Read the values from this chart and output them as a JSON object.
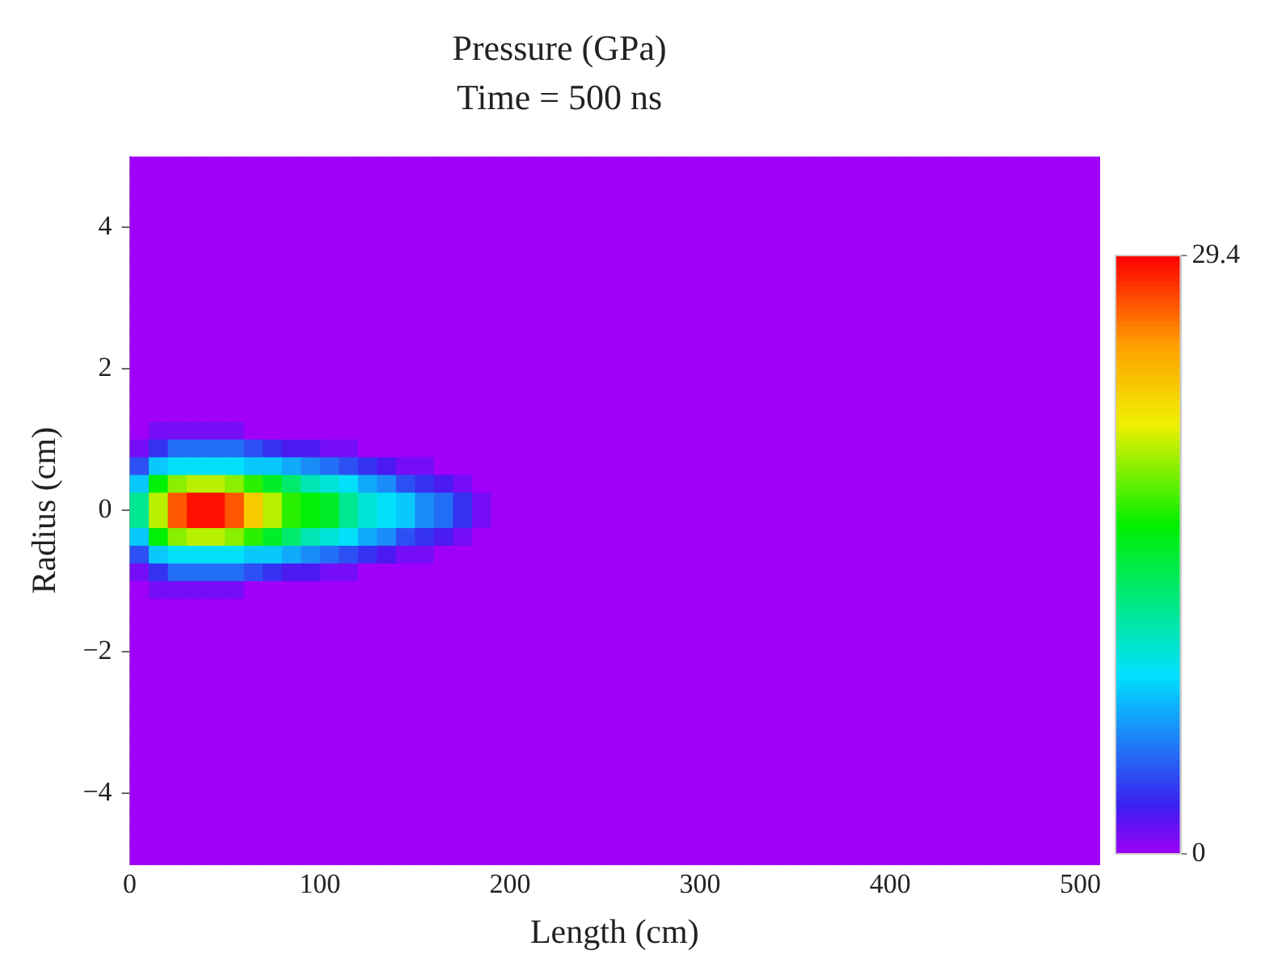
{
  "chart_data": {
    "type": "heatmap",
    "title": "Pressure (GPa)",
    "subtitle": "Time = 500 ns",
    "xlabel": "Length (cm)",
    "ylabel": "Radius (cm)",
    "xlim": [
      0,
      510
    ],
    "ylim": [
      -5,
      5
    ],
    "xticks": [
      0,
      100,
      200,
      300,
      400,
      500
    ],
    "yticks": [
      -4,
      -2,
      0,
      2,
      4
    ],
    "clim": [
      0,
      29.4
    ],
    "cticks": [
      0,
      29.4
    ],
    "cells": [
      [
        0,
        0,
        0,
        0,
        0,
        0,
        0,
        0,
        0,
        0,
        0,
        0,
        0,
        0,
        0,
        0,
        0,
        0,
        0,
        0,
        0,
        0,
        0,
        0,
        0,
        0,
        0,
        0,
        0,
        0,
        0,
        0,
        0,
        0,
        0,
        0,
        0,
        0,
        0,
        0,
        0,
        0,
        0,
        0,
        0,
        0,
        0,
        0,
        0,
        0,
        0
      ],
      [
        0,
        0,
        0,
        0,
        0,
        0,
        0,
        0,
        0,
        0,
        0,
        0,
        0,
        0,
        0,
        0,
        0,
        0,
        0,
        0,
        0,
        0,
        0,
        0,
        0,
        0,
        0,
        0,
        0,
        0,
        0,
        0,
        0,
        0,
        0,
        0,
        0,
        0,
        0,
        0,
        0,
        0,
        0,
        0,
        0,
        0,
        0,
        0,
        0,
        0,
        0
      ],
      [
        0,
        0,
        0,
        0,
        0,
        0,
        0,
        0,
        0,
        0,
        0,
        0,
        0,
        0,
        0,
        0,
        0,
        0,
        0,
        0,
        0,
        0,
        0,
        0,
        0,
        0,
        0,
        0,
        0,
        0,
        0,
        0,
        0,
        0,
        0,
        0,
        0,
        0,
        0,
        0,
        0,
        0,
        0,
        0,
        0,
        0,
        0,
        0,
        0,
        0,
        0
      ],
      [
        0,
        0,
        0,
        0,
        0,
        0,
        0,
        0,
        0,
        0,
        0,
        0,
        0,
        0,
        0,
        0,
        0,
        0,
        0,
        0,
        0,
        0,
        0,
        0,
        0,
        0,
        0,
        0,
        0,
        0,
        0,
        0,
        0,
        0,
        0,
        0,
        0,
        0,
        0,
        0,
        0,
        0,
        0,
        0,
        0,
        0,
        0,
        0,
        0,
        0,
        0
      ],
      [
        0,
        0,
        0,
        0,
        0,
        0,
        0,
        0,
        0,
        0,
        0,
        0,
        0,
        0,
        0,
        0,
        0,
        0,
        0,
        0,
        0,
        0,
        0,
        0,
        0,
        0,
        0,
        0,
        0,
        0,
        0,
        0,
        0,
        0,
        0,
        0,
        0,
        0,
        0,
        0,
        0,
        0,
        0,
        0,
        0,
        0,
        0,
        0,
        0,
        0,
        0
      ],
      [
        0,
        0,
        0,
        0,
        0,
        0,
        0,
        0,
        0,
        0,
        0,
        0,
        0,
        0,
        0,
        0,
        0,
        0,
        0,
        0,
        0,
        0,
        0,
        0,
        0,
        0,
        0,
        0,
        0,
        0,
        0,
        0,
        0,
        0,
        0,
        0,
        0,
        0,
        0,
        0,
        0,
        0,
        0,
        0,
        0,
        0,
        0,
        0,
        0,
        0,
        0
      ],
      [
        0,
        0,
        0,
        0,
        0,
        0,
        0,
        0,
        0,
        0,
        0,
        0,
        0,
        0,
        0,
        0,
        0,
        0,
        0,
        0,
        0,
        0,
        0,
        0,
        0,
        0,
        0,
        0,
        0,
        0,
        0,
        0,
        0,
        0,
        0,
        0,
        0,
        0,
        0,
        0,
        0,
        0,
        0,
        0,
        0,
        0,
        0,
        0,
        0,
        0,
        0
      ],
      [
        0,
        0,
        0,
        0,
        0,
        0,
        0,
        0,
        0,
        0,
        0,
        0,
        0,
        0,
        0,
        0,
        0,
        0,
        0,
        0,
        0,
        0,
        0,
        0,
        0,
        0,
        0,
        0,
        0,
        0,
        0,
        0,
        0,
        0,
        0,
        0,
        0,
        0,
        0,
        0,
        0,
        0,
        0,
        0,
        0,
        0,
        0,
        0,
        0,
        0,
        0
      ],
      [
        0,
        0,
        0,
        0,
        0,
        0,
        0,
        0,
        0,
        0,
        0,
        0,
        0,
        0,
        0,
        0,
        0,
        0,
        0,
        0,
        0,
        0,
        0,
        0,
        0,
        0,
        0,
        0,
        0,
        0,
        0,
        0,
        0,
        0,
        0,
        0,
        0,
        0,
        0,
        0,
        0,
        0,
        0,
        0,
        0,
        0,
        0,
        0,
        0,
        0,
        0
      ],
      [
        0,
        0,
        0,
        0,
        0,
        0,
        0,
        0,
        0,
        0,
        0,
        0,
        0,
        0,
        0,
        0,
        0,
        0,
        0,
        0,
        0,
        0,
        0,
        0,
        0,
        0,
        0,
        0,
        0,
        0,
        0,
        0,
        0,
        0,
        0,
        0,
        0,
        0,
        0,
        0,
        0,
        0,
        0,
        0,
        0,
        0,
        0,
        0,
        0,
        0,
        0
      ],
      [
        0,
        0,
        0,
        0,
        0,
        0,
        0,
        0,
        0,
        0,
        0,
        0,
        0,
        0,
        0,
        0,
        0,
        0,
        0,
        0,
        0,
        0,
        0,
        0,
        0,
        0,
        0,
        0,
        0,
        0,
        0,
        0,
        0,
        0,
        0,
        0,
        0,
        0,
        0,
        0,
        0,
        0,
        0,
        0,
        0,
        0,
        0,
        0,
        0,
        0,
        0
      ],
      [
        0,
        0,
        0,
        0,
        0,
        0,
        0,
        0,
        0,
        0,
        0,
        0,
        0,
        0,
        0,
        0,
        0,
        0,
        0,
        0,
        0,
        0,
        0,
        0,
        0,
        0,
        0,
        0,
        0,
        0,
        0,
        0,
        0,
        0,
        0,
        0,
        0,
        0,
        0,
        0,
        0,
        0,
        0,
        0,
        0,
        0,
        0,
        0,
        0,
        0,
        0
      ],
      [
        0,
        0,
        0,
        0,
        0,
        0,
        0,
        0,
        0,
        0,
        0,
        0,
        0,
        0,
        0,
        0,
        0,
        0,
        0,
        0,
        0,
        0,
        0,
        0,
        0,
        0,
        0,
        0,
        0,
        0,
        0,
        0,
        0,
        0,
        0,
        0,
        0,
        0,
        0,
        0,
        0,
        0,
        0,
        0,
        0,
        0,
        0,
        0,
        0,
        0,
        0
      ],
      [
        0,
        0,
        0,
        0,
        0,
        0,
        0,
        0,
        0,
        0,
        0,
        0,
        0,
        0,
        0,
        0,
        0,
        0,
        0,
        0,
        0,
        0,
        0,
        0,
        0,
        0,
        0,
        0,
        0,
        0,
        0,
        0,
        0,
        0,
        0,
        0,
        0,
        0,
        0,
        0,
        0,
        0,
        0,
        0,
        0,
        0,
        0,
        0,
        0,
        0,
        0
      ],
      [
        0,
        0,
        0,
        0,
        0,
        0,
        0,
        0,
        0,
        0,
        0,
        0,
        0,
        0,
        0,
        0,
        0,
        0,
        0,
        0,
        0,
        0,
        0,
        0,
        0,
        0,
        0,
        0,
        0,
        0,
        0,
        0,
        0,
        0,
        0,
        0,
        0,
        0,
        0,
        0,
        0,
        0,
        0,
        0,
        0,
        0,
        0,
        0,
        0,
        0,
        0
      ],
      [
        0,
        1,
        1,
        1,
        1,
        1,
        0,
        0,
        0,
        0,
        0,
        0,
        0,
        0,
        0,
        0,
        0,
        0,
        0,
        0,
        0,
        0,
        0,
        0,
        0,
        0,
        0,
        0,
        0,
        0,
        0,
        0,
        0,
        0,
        0,
        0,
        0,
        0,
        0,
        0,
        0,
        0,
        0,
        0,
        0,
        0,
        0,
        0,
        0,
        0,
        0
      ],
      [
        1,
        3,
        5,
        5,
        5,
        5,
        4,
        3,
        2,
        2,
        1,
        1,
        0,
        0,
        0,
        0,
        0,
        0,
        0,
        0,
        0,
        0,
        0,
        0,
        0,
        0,
        0,
        0,
        0,
        0,
        0,
        0,
        0,
        0,
        0,
        0,
        0,
        0,
        0,
        0,
        0,
        0,
        0,
        0,
        0,
        0,
        0,
        0,
        0,
        0,
        0
      ],
      [
        4,
        8,
        9,
        9,
        9,
        9,
        8,
        8,
        7,
        6,
        5,
        4,
        3,
        2,
        1,
        1,
        0,
        0,
        0,
        0,
        0,
        0,
        0,
        0,
        0,
        0,
        0,
        0,
        0,
        0,
        0,
        0,
        0,
        0,
        0,
        0,
        0,
        0,
        0,
        0,
        0,
        0,
        0,
        0,
        0,
        0,
        0,
        0,
        0,
        0,
        0
      ],
      [
        8,
        16,
        19,
        20,
        20,
        19,
        17,
        15,
        13,
        11,
        10,
        9,
        7,
        6,
        4,
        3,
        2,
        1,
        0,
        0,
        0,
        0,
        0,
        0,
        0,
        0,
        0,
        0,
        0,
        0,
        0,
        0,
        0,
        0,
        0,
        0,
        0,
        0,
        0,
        0,
        0,
        0,
        0,
        0,
        0,
        0,
        0,
        0,
        0,
        0,
        0
      ],
      [
        12,
        20,
        27,
        29,
        29,
        27,
        23,
        20,
        17,
        16,
        15,
        12,
        10,
        9,
        8,
        6,
        5,
        3,
        1,
        0,
        0,
        0,
        0,
        0,
        0,
        0,
        0,
        0,
        0,
        0,
        0,
        0,
        0,
        0,
        0,
        0,
        0,
        0,
        0,
        0,
        0,
        0,
        0,
        0,
        0,
        0,
        0,
        0,
        0,
        0,
        0
      ],
      [
        12,
        20,
        27,
        29,
        29,
        27,
        23,
        20,
        17,
        16,
        15,
        12,
        10,
        9,
        8,
        6,
        5,
        3,
        1,
        0,
        0,
        0,
        0,
        0,
        0,
        0,
        0,
        0,
        0,
        0,
        0,
        0,
        0,
        0,
        0,
        0,
        0,
        0,
        0,
        0,
        0,
        0,
        0,
        0,
        0,
        0,
        0,
        0,
        0,
        0,
        0
      ],
      [
        8,
        16,
        19,
        20,
        20,
        19,
        17,
        15,
        13,
        11,
        10,
        9,
        7,
        6,
        4,
        3,
        2,
        1,
        0,
        0,
        0,
        0,
        0,
        0,
        0,
        0,
        0,
        0,
        0,
        0,
        0,
        0,
        0,
        0,
        0,
        0,
        0,
        0,
        0,
        0,
        0,
        0,
        0,
        0,
        0,
        0,
        0,
        0,
        0,
        0,
        0
      ],
      [
        4,
        8,
        9,
        9,
        9,
        9,
        8,
        8,
        7,
        6,
        5,
        4,
        3,
        2,
        1,
        1,
        0,
        0,
        0,
        0,
        0,
        0,
        0,
        0,
        0,
        0,
        0,
        0,
        0,
        0,
        0,
        0,
        0,
        0,
        0,
        0,
        0,
        0,
        0,
        0,
        0,
        0,
        0,
        0,
        0,
        0,
        0,
        0,
        0,
        0,
        0
      ],
      [
        1,
        3,
        5,
        5,
        5,
        5,
        4,
        3,
        2,
        2,
        1,
        1,
        0,
        0,
        0,
        0,
        0,
        0,
        0,
        0,
        0,
        0,
        0,
        0,
        0,
        0,
        0,
        0,
        0,
        0,
        0,
        0,
        0,
        0,
        0,
        0,
        0,
        0,
        0,
        0,
        0,
        0,
        0,
        0,
        0,
        0,
        0,
        0,
        0,
        0,
        0
      ],
      [
        0,
        1,
        1,
        1,
        1,
        1,
        0,
        0,
        0,
        0,
        0,
        0,
        0,
        0,
        0,
        0,
        0,
        0,
        0,
        0,
        0,
        0,
        0,
        0,
        0,
        0,
        0,
        0,
        0,
        0,
        0,
        0,
        0,
        0,
        0,
        0,
        0,
        0,
        0,
        0,
        0,
        0,
        0,
        0,
        0,
        0,
        0,
        0,
        0,
        0,
        0
      ],
      [
        0,
        0,
        0,
        0,
        0,
        0,
        0,
        0,
        0,
        0,
        0,
        0,
        0,
        0,
        0,
        0,
        0,
        0,
        0,
        0,
        0,
        0,
        0,
        0,
        0,
        0,
        0,
        0,
        0,
        0,
        0,
        0,
        0,
        0,
        0,
        0,
        0,
        0,
        0,
        0,
        0,
        0,
        0,
        0,
        0,
        0,
        0,
        0,
        0,
        0,
        0
      ],
      [
        0,
        0,
        0,
        0,
        0,
        0,
        0,
        0,
        0,
        0,
        0,
        0,
        0,
        0,
        0,
        0,
        0,
        0,
        0,
        0,
        0,
        0,
        0,
        0,
        0,
        0,
        0,
        0,
        0,
        0,
        0,
        0,
        0,
        0,
        0,
        0,
        0,
        0,
        0,
        0,
        0,
        0,
        0,
        0,
        0,
        0,
        0,
        0,
        0,
        0,
        0
      ],
      [
        0,
        0,
        0,
        0,
        0,
        0,
        0,
        0,
        0,
        0,
        0,
        0,
        0,
        0,
        0,
        0,
        0,
        0,
        0,
        0,
        0,
        0,
        0,
        0,
        0,
        0,
        0,
        0,
        0,
        0,
        0,
        0,
        0,
        0,
        0,
        0,
        0,
        0,
        0,
        0,
        0,
        0,
        0,
        0,
        0,
        0,
        0,
        0,
        0,
        0,
        0
      ],
      [
        0,
        0,
        0,
        0,
        0,
        0,
        0,
        0,
        0,
        0,
        0,
        0,
        0,
        0,
        0,
        0,
        0,
        0,
        0,
        0,
        0,
        0,
        0,
        0,
        0,
        0,
        0,
        0,
        0,
        0,
        0,
        0,
        0,
        0,
        0,
        0,
        0,
        0,
        0,
        0,
        0,
        0,
        0,
        0,
        0,
        0,
        0,
        0,
        0,
        0,
        0
      ],
      [
        0,
        0,
        0,
        0,
        0,
        0,
        0,
        0,
        0,
        0,
        0,
        0,
        0,
        0,
        0,
        0,
        0,
        0,
        0,
        0,
        0,
        0,
        0,
        0,
        0,
        0,
        0,
        0,
        0,
        0,
        0,
        0,
        0,
        0,
        0,
        0,
        0,
        0,
        0,
        0,
        0,
        0,
        0,
        0,
        0,
        0,
        0,
        0,
        0,
        0,
        0
      ],
      [
        0,
        0,
        0,
        0,
        0,
        0,
        0,
        0,
        0,
        0,
        0,
        0,
        0,
        0,
        0,
        0,
        0,
        0,
        0,
        0,
        0,
        0,
        0,
        0,
        0,
        0,
        0,
        0,
        0,
        0,
        0,
        0,
        0,
        0,
        0,
        0,
        0,
        0,
        0,
        0,
        0,
        0,
        0,
        0,
        0,
        0,
        0,
        0,
        0,
        0,
        0
      ],
      [
        0,
        0,
        0,
        0,
        0,
        0,
        0,
        0,
        0,
        0,
        0,
        0,
        0,
        0,
        0,
        0,
        0,
        0,
        0,
        0,
        0,
        0,
        0,
        0,
        0,
        0,
        0,
        0,
        0,
        0,
        0,
        0,
        0,
        0,
        0,
        0,
        0,
        0,
        0,
        0,
        0,
        0,
        0,
        0,
        0,
        0,
        0,
        0,
        0,
        0,
        0
      ],
      [
        0,
        0,
        0,
        0,
        0,
        0,
        0,
        0,
        0,
        0,
        0,
        0,
        0,
        0,
        0,
        0,
        0,
        0,
        0,
        0,
        0,
        0,
        0,
        0,
        0,
        0,
        0,
        0,
        0,
        0,
        0,
        0,
        0,
        0,
        0,
        0,
        0,
        0,
        0,
        0,
        0,
        0,
        0,
        0,
        0,
        0,
        0,
        0,
        0,
        0,
        0
      ],
      [
        0,
        0,
        0,
        0,
        0,
        0,
        0,
        0,
        0,
        0,
        0,
        0,
        0,
        0,
        0,
        0,
        0,
        0,
        0,
        0,
        0,
        0,
        0,
        0,
        0,
        0,
        0,
        0,
        0,
        0,
        0,
        0,
        0,
        0,
        0,
        0,
        0,
        0,
        0,
        0,
        0,
        0,
        0,
        0,
        0,
        0,
        0,
        0,
        0,
        0,
        0
      ],
      [
        0,
        0,
        0,
        0,
        0,
        0,
        0,
        0,
        0,
        0,
        0,
        0,
        0,
        0,
        0,
        0,
        0,
        0,
        0,
        0,
        0,
        0,
        0,
        0,
        0,
        0,
        0,
        0,
        0,
        0,
        0,
        0,
        0,
        0,
        0,
        0,
        0,
        0,
        0,
        0,
        0,
        0,
        0,
        0,
        0,
        0,
        0,
        0,
        0,
        0,
        0
      ],
      [
        0,
        0,
        0,
        0,
        0,
        0,
        0,
        0,
        0,
        0,
        0,
        0,
        0,
        0,
        0,
        0,
        0,
        0,
        0,
        0,
        0,
        0,
        0,
        0,
        0,
        0,
        0,
        0,
        0,
        0,
        0,
        0,
        0,
        0,
        0,
        0,
        0,
        0,
        0,
        0,
        0,
        0,
        0,
        0,
        0,
        0,
        0,
        0,
        0,
        0,
        0
      ],
      [
        0,
        0,
        0,
        0,
        0,
        0,
        0,
        0,
        0,
        0,
        0,
        0,
        0,
        0,
        0,
        0,
        0,
        0,
        0,
        0,
        0,
        0,
        0,
        0,
        0,
        0,
        0,
        0,
        0,
        0,
        0,
        0,
        0,
        0,
        0,
        0,
        0,
        0,
        0,
        0,
        0,
        0,
        0,
        0,
        0,
        0,
        0,
        0,
        0,
        0,
        0
      ],
      [
        0,
        0,
        0,
        0,
        0,
        0,
        0,
        0,
        0,
        0,
        0,
        0,
        0,
        0,
        0,
        0,
        0,
        0,
        0,
        0,
        0,
        0,
        0,
        0,
        0,
        0,
        0,
        0,
        0,
        0,
        0,
        0,
        0,
        0,
        0,
        0,
        0,
        0,
        0,
        0,
        0,
        0,
        0,
        0,
        0,
        0,
        0,
        0,
        0,
        0,
        0
      ],
      [
        0,
        0,
        0,
        0,
        0,
        0,
        0,
        0,
        0,
        0,
        0,
        0,
        0,
        0,
        0,
        0,
        0,
        0,
        0,
        0,
        0,
        0,
        0,
        0,
        0,
        0,
        0,
        0,
        0,
        0,
        0,
        0,
        0,
        0,
        0,
        0,
        0,
        0,
        0,
        0,
        0,
        0,
        0,
        0,
        0,
        0,
        0,
        0,
        0,
        0,
        0
      ],
      [
        0,
        0,
        0,
        0,
        0,
        0,
        0,
        0,
        0,
        0,
        0,
        0,
        0,
        0,
        0,
        0,
        0,
        0,
        0,
        0,
        0,
        0,
        0,
        0,
        0,
        0,
        0,
        0,
        0,
        0,
        0,
        0,
        0,
        0,
        0,
        0,
        0,
        0,
        0,
        0,
        0,
        0,
        0,
        0,
        0,
        0,
        0,
        0,
        0,
        0,
        0
      ]
    ]
  }
}
